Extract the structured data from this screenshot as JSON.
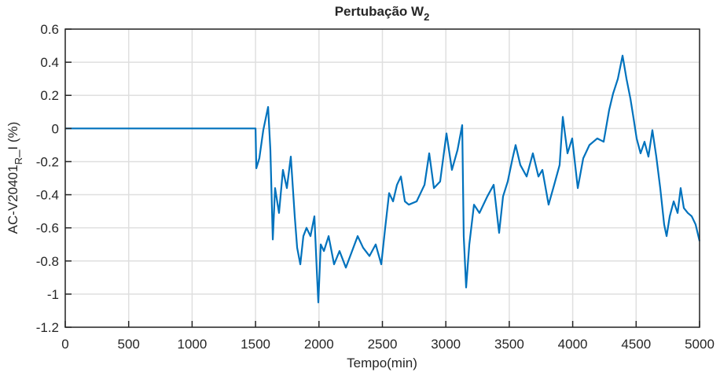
{
  "chart_data": {
    "type": "line",
    "title": "Pertubação W",
    "title_subscript": "2",
    "x_label": "Tempo(min)",
    "y_label": "AC-V20401",
    "y_label_subscript": "R",
    "y_label_suffix": "_I (%)",
    "xlim": [
      0,
      5000
    ],
    "xticks": [
      0,
      500,
      1000,
      1500,
      2000,
      2500,
      3000,
      3500,
      4000,
      4500,
      5000
    ],
    "ylim": [
      -1.2,
      0.6
    ],
    "yticks": [
      -1.2,
      -1,
      -0.8,
      -0.6,
      -0.4,
      -0.2,
      0,
      0.2,
      0.4,
      0.6
    ],
    "grid": true,
    "series": [
      {
        "color": "#0072bd",
        "x": [
          0,
          1500,
          1506,
          1530,
          1561,
          1580,
          1599,
          1617,
          1636,
          1654,
          1685,
          1716,
          1747,
          1778,
          1809,
          1828,
          1853,
          1877,
          1902,
          1933,
          1964,
          1983,
          1995,
          2014,
          2039,
          2076,
          2119,
          2162,
          2212,
          2261,
          2305,
          2348,
          2398,
          2447,
          2491,
          2522,
          2553,
          2584,
          2615,
          2646,
          2677,
          2708,
          2770,
          2832,
          2869,
          2906,
          2955,
          3005,
          3048,
          3092,
          3129,
          3141,
          3160,
          3185,
          3222,
          3265,
          3327,
          3377,
          3420,
          3451,
          3488,
          3526,
          3550,
          3587,
          3637,
          3686,
          3730,
          3761,
          3810,
          3854,
          3897,
          3922,
          3959,
          3996,
          4040,
          4083,
          4132,
          4194,
          4244,
          4287,
          4318,
          4356,
          4393,
          4424,
          4455,
          4480,
          4504,
          4535,
          4566,
          4597,
          4628,
          4659,
          4690,
          4721,
          4740,
          4765,
          4796,
          4827,
          4851,
          4876,
          4907,
          4938,
          4969,
          5000
        ],
        "values": [
          0,
          0,
          -0.24,
          -0.18,
          -0.01,
          0.06,
          0.13,
          -0.13,
          -0.67,
          -0.36,
          -0.51,
          -0.25,
          -0.36,
          -0.17,
          -0.53,
          -0.72,
          -0.82,
          -0.65,
          -0.6,
          -0.65,
          -0.53,
          -0.86,
          -1.05,
          -0.7,
          -0.74,
          -0.65,
          -0.82,
          -0.74,
          -0.84,
          -0.74,
          -0.65,
          -0.72,
          -0.77,
          -0.7,
          -0.82,
          -0.6,
          -0.39,
          -0.44,
          -0.34,
          -0.29,
          -0.44,
          -0.46,
          -0.44,
          -0.34,
          -0.15,
          -0.36,
          -0.32,
          -0.03,
          -0.25,
          -0.13,
          0.02,
          -0.65,
          -0.96,
          -0.7,
          -0.46,
          -0.51,
          -0.41,
          -0.34,
          -0.63,
          -0.41,
          -0.32,
          -0.18,
          -0.1,
          -0.22,
          -0.29,
          -0.15,
          -0.29,
          -0.25,
          -0.46,
          -0.34,
          -0.22,
          0.07,
          -0.15,
          -0.06,
          -0.36,
          -0.18,
          -0.1,
          -0.06,
          -0.08,
          0.11,
          0.21,
          0.3,
          0.44,
          0.3,
          0.18,
          0.06,
          -0.06,
          -0.15,
          -0.08,
          -0.17,
          -0.01,
          -0.17,
          -0.36,
          -0.58,
          -0.65,
          -0.53,
          -0.44,
          -0.51,
          -0.36,
          -0.48,
          -0.51,
          -0.53,
          -0.58,
          -0.68
        ]
      }
    ]
  }
}
